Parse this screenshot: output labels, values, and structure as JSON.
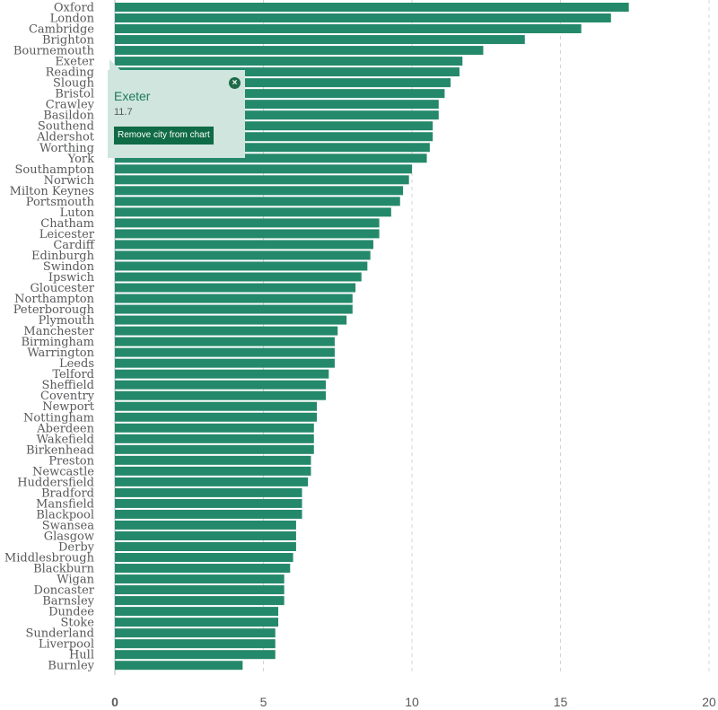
{
  "chart_data": {
    "type": "bar",
    "orientation": "horizontal",
    "categories": [
      "Oxford",
      "London",
      "Cambridge",
      "Brighton",
      "Bournemouth",
      "Exeter",
      "Reading",
      "Slough",
      "Bristol",
      "Crawley",
      "Basildon",
      "Southend",
      "Aldershot",
      "Worthing",
      "York",
      "Southampton",
      "Norwich",
      "Milton Keynes",
      "Portsmouth",
      "Luton",
      "Chatham",
      "Leicester",
      "Cardiff",
      "Edinburgh",
      "Swindon",
      "Ipswich",
      "Gloucester",
      "Northampton",
      "Peterborough",
      "Plymouth",
      "Manchester",
      "Birmingham",
      "Warrington",
      "Leeds",
      "Telford",
      "Sheffield",
      "Coventry",
      "Newport",
      "Nottingham",
      "Aberdeen",
      "Wakefield",
      "Birkenhead",
      "Preston",
      "Newcastle",
      "Huddersfield",
      "Bradford",
      "Mansfield",
      "Blackpool",
      "Swansea",
      "Glasgow",
      "Derby",
      "Middlesbrough",
      "Blackburn",
      "Wigan",
      "Doncaster",
      "Barnsley",
      "Dundee",
      "Stoke",
      "Sunderland",
      "Liverpool",
      "Hull",
      "Burnley"
    ],
    "values": [
      17.3,
      16.7,
      15.7,
      13.8,
      12.4,
      11.7,
      11.6,
      11.3,
      11.1,
      10.9,
      10.9,
      10.7,
      10.7,
      10.6,
      10.5,
      10.0,
      9.9,
      9.7,
      9.6,
      9.3,
      8.9,
      8.9,
      8.7,
      8.6,
      8.5,
      8.3,
      8.1,
      8.0,
      8.0,
      7.8,
      7.5,
      7.4,
      7.4,
      7.4,
      7.2,
      7.1,
      7.1,
      6.8,
      6.8,
      6.7,
      6.7,
      6.7,
      6.6,
      6.6,
      6.5,
      6.3,
      6.3,
      6.3,
      6.1,
      6.1,
      6.1,
      6.0,
      5.9,
      5.7,
      5.7,
      5.7,
      5.5,
      5.5,
      5.4,
      5.4,
      5.4,
      4.3
    ],
    "xlim": [
      0,
      20
    ],
    "xticks": [
      "0",
      "5",
      "10",
      "15",
      "20"
    ],
    "grid": true,
    "bar_color": "#24896a"
  },
  "tooltip": {
    "city": "Exeter",
    "value": "11.7",
    "button_label": "Remove city from chart",
    "close_symbol": "×"
  }
}
